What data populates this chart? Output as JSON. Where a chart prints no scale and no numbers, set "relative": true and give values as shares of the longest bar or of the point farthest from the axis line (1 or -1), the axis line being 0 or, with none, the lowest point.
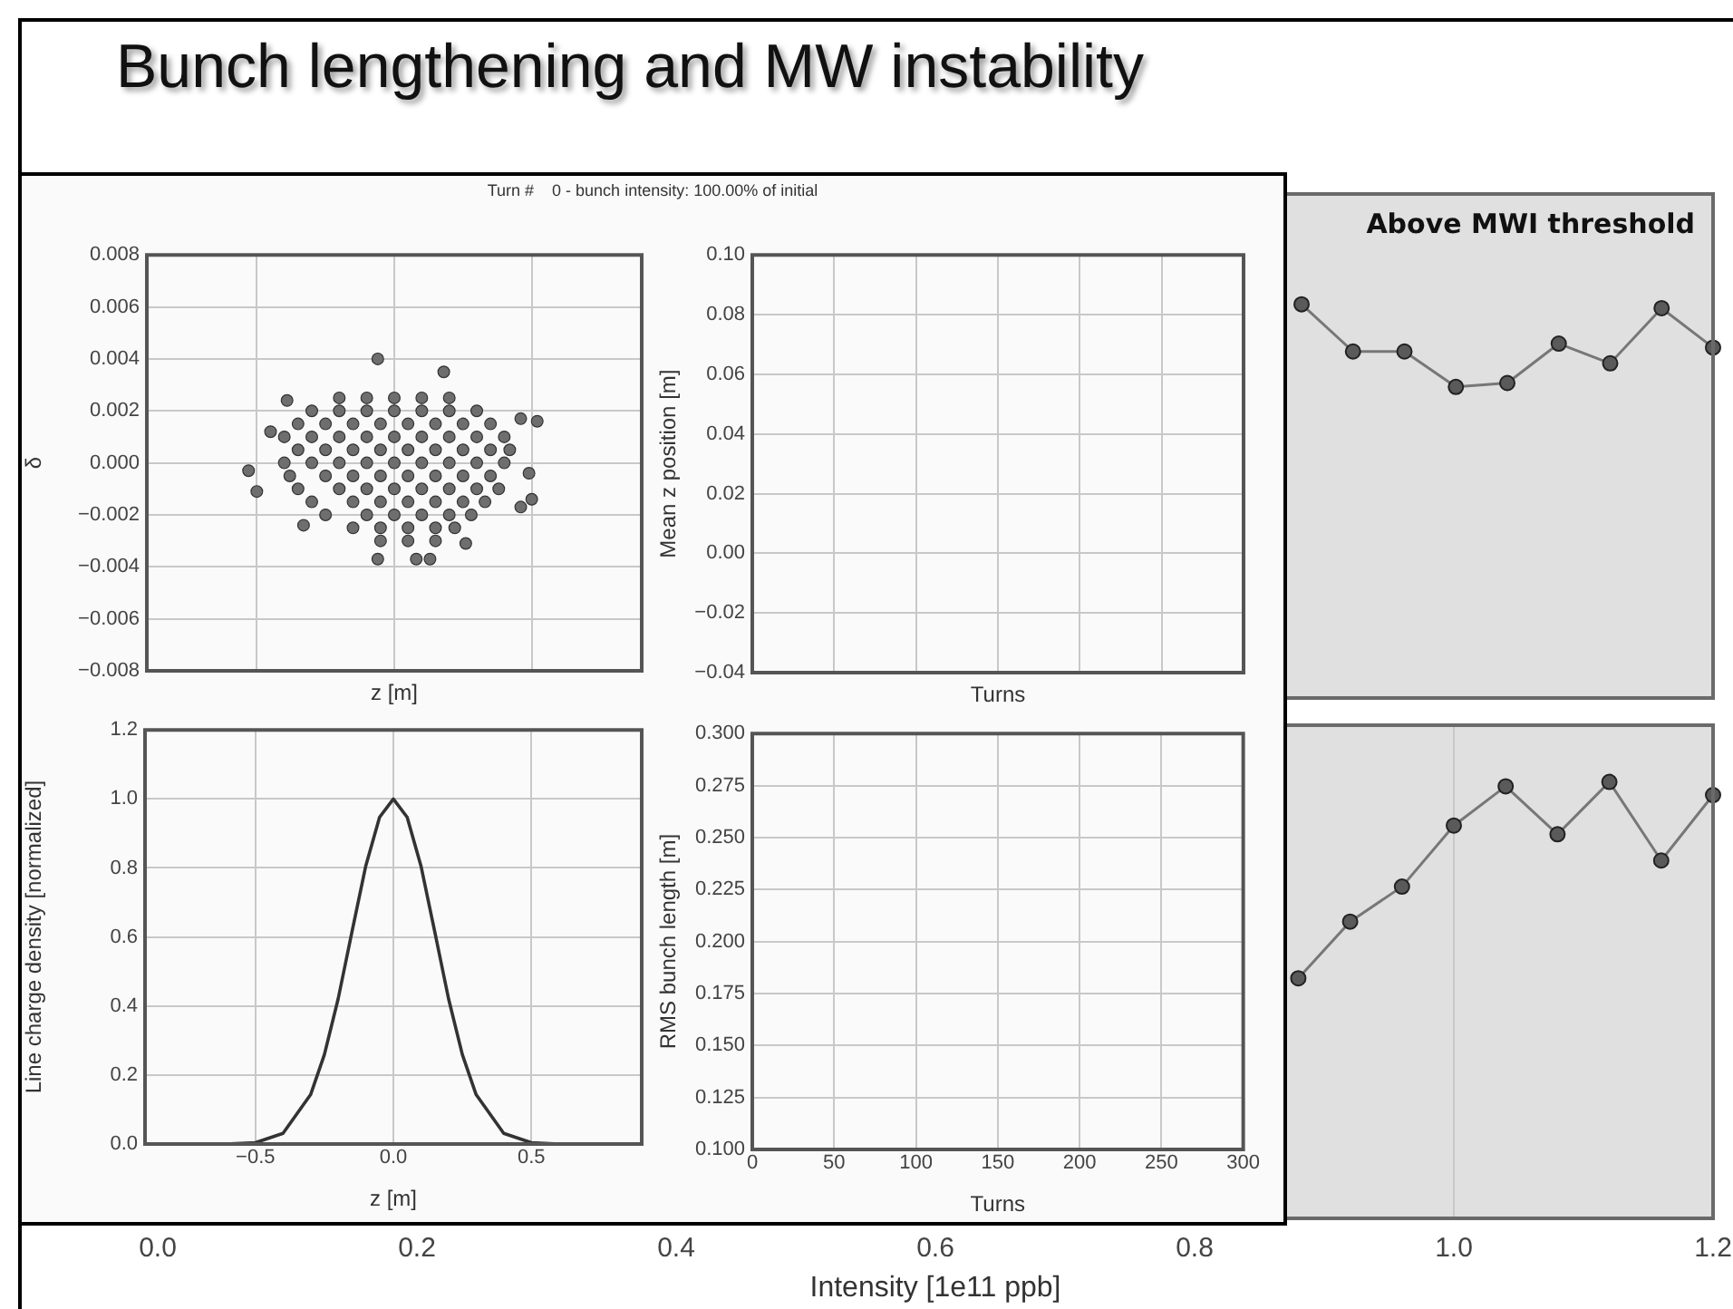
{
  "chart_data": [
    {
      "type": "line",
      "relative": true,
      "categories": [
        null,
        null,
        null,
        null,
        null,
        null,
        null,
        null,
        null
      ],
      "series": [
        {
          "color": "#777777",
          "values": [
            1,
            0.88,
            0.88,
            0.79,
            0.8,
            0.9,
            0.85,
            0.99,
            0.89
          ]
        }
      ],
      "marker": "circle",
      "annotations": [
        "Above MWI threshold"
      ]
    },
    {
      "type": "line",
      "relative": true,
      "x": [
        0.88,
        0.92,
        0.96,
        1.0,
        1.04,
        1.08,
        1.12,
        1.16,
        1.2
      ],
      "series": [
        {
          "color": "#777777",
          "values": [
            0.55,
            0.68,
            0.76,
            0.9,
            0.99,
            0.88,
            1,
            0.82,
            0.97
          ]
        }
      ],
      "xlim": [
        0,
        1.2
      ],
      "xticks": [
        {
          "value": 0,
          "label": "0.0"
        },
        0.2,
        0.4,
        0.6,
        0.8,
        {
          "value": 1,
          "label": "1.0"
        },
        1.2
      ],
      "xlabel": "Intensity [1e11 ppb]",
      "tick_labels": "x",
      "grid": "x",
      "marker": "circle"
    },
    {
      "type": "scatter",
      "title": "Bunch lengthening and MW instability",
      "annotations": [
        "Turn #    0 - bunch intensity: 100.00% of initial"
      ],
      "xlabel": "z [m]",
      "ylabel": "δ",
      "x": [
        -0.2,
        -0.1,
        0,
        0.1,
        0.2,
        -0.3,
        -0.2,
        -0.1,
        0,
        0.1,
        0.2,
        0.3,
        -0.35,
        -0.25,
        -0.15,
        -0.05,
        0.05,
        0.15,
        0.25,
        0.35,
        -0.4,
        -0.3,
        -0.2,
        -0.1,
        0,
        0.1,
        0.2,
        0.3,
        0.4,
        -0.35,
        -0.25,
        -0.15,
        -0.05,
        0.05,
        0.15,
        0.25,
        0.35,
        0.42,
        -0.4,
        -0.3,
        -0.2,
        -0.1,
        0,
        0.1,
        0.2,
        0.3,
        0.4,
        -0.38,
        -0.25,
        -0.15,
        -0.05,
        0.05,
        0.15,
        0.25,
        0.35,
        -0.35,
        -0.2,
        -0.1,
        0,
        0.1,
        0.2,
        0.3,
        0.38,
        -0.3,
        -0.15,
        -0.05,
        0.05,
        0.15,
        0.25,
        0.33,
        -0.25,
        -0.1,
        0,
        0.1,
        0.2,
        0.28,
        -0.15,
        -0.05,
        0.05,
        0.15,
        0.22,
        -0.05,
        0.05,
        0.15,
        -0.06,
        0.18,
        -0.39,
        0.52,
        0.46,
        -0.53,
        -0.5,
        -0.33,
        -0.06,
        0.08,
        0.13,
        0.26,
        0.46,
        0.5,
        0.49,
        -0.45
      ],
      "values": [
        0.0025,
        0.0025,
        0.0025,
        0.0025,
        0.0025,
        0.002,
        0.002,
        0.002,
        0.002,
        0.002,
        0.002,
        0.002,
        0.0015,
        0.0015,
        0.0015,
        0.0015,
        0.0015,
        0.0015,
        0.0015,
        0.0015,
        0.001,
        0.001,
        0.001,
        0.001,
        0.001,
        0.001,
        0.001,
        0.001,
        0.001,
        0.0005,
        0.0005,
        0.0005,
        0.0005,
        0.0005,
        0.0005,
        0.0005,
        0.0005,
        0.0005,
        0,
        0,
        0,
        0,
        0,
        0,
        0,
        0,
        0,
        -0.0005,
        -0.0005,
        -0.0005,
        -0.0005,
        -0.0005,
        -0.0005,
        -0.0005,
        -0.0005,
        -0.001,
        -0.001,
        -0.001,
        -0.001,
        -0.001,
        -0.001,
        -0.001,
        -0.001,
        -0.0015,
        -0.0015,
        -0.0015,
        -0.0015,
        -0.0015,
        -0.0015,
        -0.0015,
        -0.002,
        -0.002,
        -0.002,
        -0.002,
        -0.002,
        -0.002,
        -0.0025,
        -0.0025,
        -0.0025,
        -0.0025,
        -0.0025,
        -0.003,
        -0.003,
        -0.003,
        0.004,
        0.0035,
        0.0024,
        0.0016,
        0.0017,
        -0.0003,
        -0.0011,
        -0.0024,
        -0.0037,
        -0.0037,
        -0.0037,
        -0.0031,
        -0.0017,
        -0.0014,
        -0.0004,
        0.0012
      ],
      "color": "#6e6e6e",
      "xlim": [
        -0.9,
        0.9
      ],
      "xticks": [
        -0.5,
        0,
        0.5
      ],
      "ylim": [
        -0.008,
        0.008
      ],
      "yticks": [
        {
          "value": -0.008,
          "label": "−0.008"
        },
        {
          "value": -0.006,
          "label": "−0.006"
        },
        {
          "value": -0.004,
          "label": "−0.004"
        },
        {
          "value": -0.002,
          "label": "−0.002"
        },
        {
          "value": 0,
          "label": "0.000"
        },
        0.002,
        0.004,
        0.006,
        0.008
      ],
      "tick_labels": "y",
      "grid": true,
      "marker": "circle"
    },
    {
      "type": "line",
      "xlabel": "Turns",
      "ylabel": "Mean z position [m]",
      "xlim": [
        0,
        300
      ],
      "xticks": [
        0,
        50,
        100,
        150,
        200,
        250,
        300
      ],
      "ylim": [
        -0.04,
        0.1
      ],
      "yticks": [
        {
          "value": -0.04,
          "label": "−0.04"
        },
        {
          "value": -0.02,
          "label": "−0.02"
        },
        {
          "value": 0,
          "label": "0.00"
        },
        0.02,
        0.04,
        0.06,
        0.08,
        {
          "value": 0.1,
          "label": "0.10"
        }
      ],
      "tick_labels": "y",
      "grid": true
    },
    {
      "type": "line",
      "xlabel": "z [m]",
      "ylabel": "Line charge density [normalized]",
      "x": [
        -0.6,
        -0.5,
        -0.4,
        -0.3,
        -0.25,
        -0.2,
        -0.15,
        -0.1,
        -0.05,
        0,
        0.05,
        0.1,
        0.15,
        0.2,
        0.25,
        0.3,
        0.4,
        0.5,
        0.6
      ],
      "series": [
        {
          "color": "#333333",
          "values": [
            0,
            0.004,
            0.031,
            0.143,
            0.259,
            0.421,
            0.615,
            0.806,
            0.947,
            1,
            0.947,
            0.806,
            0.615,
            0.421,
            0.259,
            0.143,
            0.031,
            0.004,
            0
          ]
        }
      ],
      "xlim": [
        -0.9,
        0.9
      ],
      "xticks": [
        {
          "value": -0.5,
          "label": "−0.5"
        },
        {
          "value": 0,
          "label": "0.0"
        },
        0.5
      ],
      "ylim": [
        0,
        1.2
      ],
      "yticks": [
        {
          "value": 0,
          "label": "0.0"
        },
        0.2,
        0.4,
        0.6,
        0.8,
        {
          "value": 1,
          "label": "1.0"
        },
        1.2
      ],
      "grid": true
    },
    {
      "type": "line",
      "xlabel": "Turns",
      "ylabel": "RMS bunch length [m]",
      "xlim": [
        0,
        300
      ],
      "xticks": [
        0,
        50,
        100,
        150,
        200,
        250,
        300
      ],
      "ylim": [
        0.1,
        0.3
      ],
      "yticks": [
        {
          "value": 0.1,
          "label": "0.100"
        },
        0.125,
        {
          "value": 0.15,
          "label": "0.150"
        },
        0.175,
        {
          "value": 0.2,
          "label": "0.200"
        },
        0.225,
        {
          "value": 0.25,
          "label": "0.250"
        },
        0.275,
        {
          "value": 0.3,
          "label": "0.300"
        }
      ],
      "grid": true
    }
  ]
}
